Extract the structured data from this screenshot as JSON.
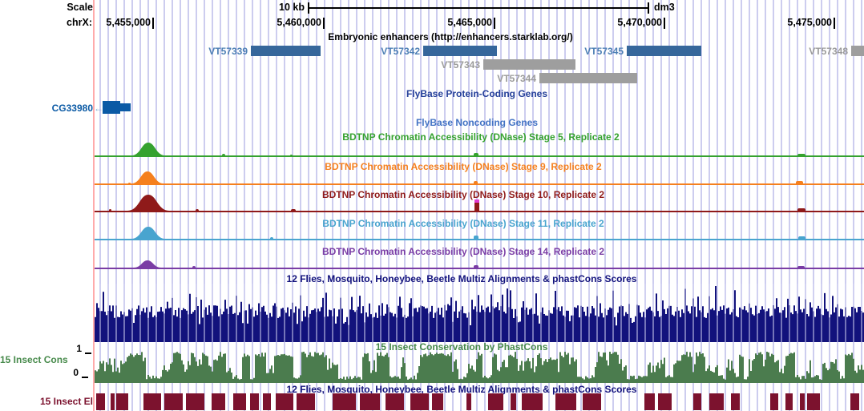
{
  "header": {
    "scale_label": "Scale",
    "chrom_label": "chrX:",
    "scale_value": "10 kb",
    "assembly": "dm3",
    "coordinates": [
      "5,455,000",
      "5,460,000",
      "5,465,000",
      "5,470,000",
      "5,475,000"
    ]
  },
  "colors": {
    "enhancer_blue": "#36679b",
    "enhancer_blue_label": "#4d7fb5",
    "enhancer_gray": "#9e9e9e",
    "enhancer_gray_label": "#9b9b9b",
    "enhancer_title": "#000000",
    "gene_blue": "#0b5aa5",
    "gene_arrow_blue": "#8aaed0",
    "protein_coding_title": "#233e99",
    "noncoding_title": "#4272c4",
    "stage5_green": "#35a22f",
    "stage9_orange": "#f5801e",
    "stage10_red": "#8f1a1a",
    "overflow_magenta": "#e23bd0",
    "stage11_blue": "#49a4cf",
    "stage14_purple": "#7a3da5",
    "multiz_navy": "#12127c",
    "conservation_green": "#4b7c4e",
    "conservation_title_green": "#478a4b",
    "els_maroon": "#7c122e",
    "guideline": "#cdcdef",
    "highlight_pink": "#ffabab",
    "text_black": "#000000"
  },
  "tracks": {
    "enhancers": {
      "title": "Embryonic enhancers (http://enhancers.starklab.org/)",
      "items": [
        {
          "label": "VT57339",
          "style": "blue"
        },
        {
          "label": "VT57342",
          "style": "blue"
        },
        {
          "label": "VT57345",
          "style": "blue"
        },
        {
          "label": "VT57348",
          "style": "gray"
        },
        {
          "label": "VT57343",
          "style": "gray"
        },
        {
          "label": "VT57344",
          "style": "gray"
        }
      ]
    },
    "protein_coding": {
      "title": "FlyBase Protein-Coding Genes",
      "gene": {
        "label": "CG33980",
        "strand": "left"
      }
    },
    "noncoding": {
      "title": "FlyBase Noncoding Genes"
    },
    "dnase_stage5": {
      "title": "BDTNP Chromatin Accessibility (DNase) Stage 5, Replicate 2"
    },
    "dnase_stage9": {
      "title": "BDTNP Chromatin Accessibility (DNase) Stage 9, Replicate 2"
    },
    "dnase_stage10": {
      "title": "BDTNP Chromatin Accessibility (DNase) Stage 10, Replicate 2"
    },
    "dnase_stage11": {
      "title": "BDTNP Chromatin Accessibility (DNase) Stage 11, Replicate 2"
    },
    "dnase_stage14": {
      "title": "BDTNP Chromatin Accessibility (DNase) Stage 14, Replicate 2"
    },
    "multiz": {
      "title": "12 Flies, Mosquito, Honeybee, Beetle Multiz Alignments & phastCons Scores"
    },
    "phastcons": {
      "title": "15 Insect Conservation by PhastCons",
      "left_label": "15 Insect Cons",
      "axis_top": "1",
      "axis_bottom": "0"
    },
    "multiz_repeat": {
      "title": "12 Flies, Mosquito, Honeybee, Beetle Multiz Alignments & phastCons Scores"
    },
    "insect_els": {
      "left_label": "15 Insect El"
    }
  }
}
